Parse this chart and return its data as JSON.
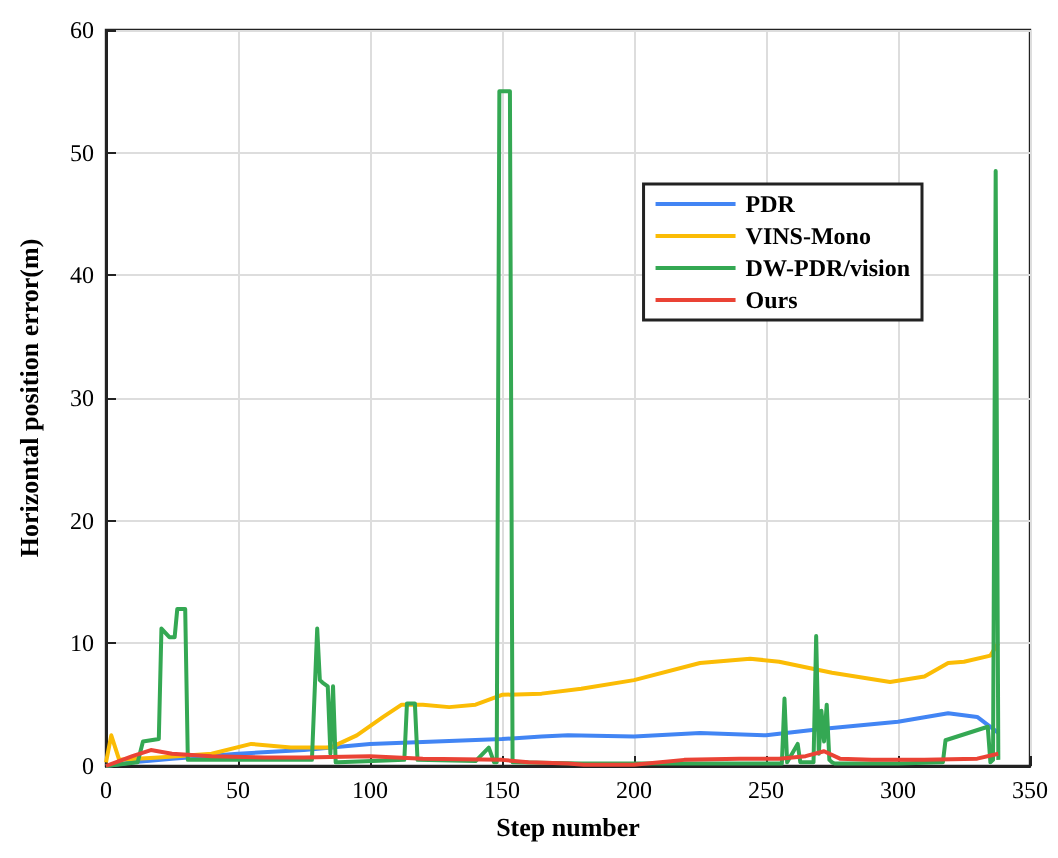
{
  "chart_data": {
    "type": "line",
    "xlabel": "Step number",
    "ylabel": "Horizontal position error(m)",
    "xlim": [
      0,
      350
    ],
    "xticks": [
      0,
      50,
      100,
      150,
      200,
      250,
      300,
      350
    ],
    "ylim": [
      0,
      60
    ],
    "yticks": [
      0,
      10,
      20,
      30,
      40,
      50,
      60
    ],
    "grid": true,
    "legend": "top right",
    "marker": "none",
    "line_style": "solid",
    "series": [
      {
        "name": "PDR",
        "color": "#4285f4",
        "x": [
          0,
          10,
          25,
          50,
          75,
          100,
          125,
          150,
          165,
          175,
          200,
          225,
          250,
          270,
          300,
          319,
          330,
          338
        ],
        "values": [
          0,
          0.3,
          0.6,
          1,
          1.3,
          1.8,
          2,
          2.2,
          2.4,
          2.5,
          2.4,
          2.7,
          2.5,
          3,
          3.6,
          4.3,
          4,
          2.7
        ]
      },
      {
        "name": "VINS-Mono",
        "color": "#fbbc05",
        "x": [
          0,
          2,
          5,
          20,
          40,
          55,
          70,
          85,
          95,
          105,
          112,
          120,
          130,
          140,
          150,
          165,
          180,
          200,
          225,
          244,
          255,
          275,
          297,
          310,
          319,
          325,
          335,
          337,
          338
        ],
        "values": [
          0.3,
          2.5,
          0.5,
          0.7,
          1,
          1.8,
          1.5,
          1.5,
          2.5,
          4,
          5,
          5,
          4.8,
          5,
          5.8,
          5.9,
          6.3,
          7,
          8.4,
          8.75,
          8.5,
          7.6,
          6.85,
          7.3,
          8.4,
          8.5,
          9,
          9.7,
          10
        ]
      },
      {
        "name": "DW-PDR/vision",
        "color": "#34a853",
        "x": [
          0,
          12,
          14,
          20,
          21,
          24,
          26,
          27,
          30,
          30.5,
          31,
          50,
          78,
          80,
          81,
          82,
          84,
          85,
          86,
          87,
          88,
          113,
          114,
          117,
          118,
          140,
          145,
          147,
          148,
          149,
          153,
          154,
          180,
          220,
          256,
          257,
          258,
          262,
          263,
          268,
          269,
          270,
          271,
          272,
          273,
          274,
          275,
          276,
          300,
          317,
          318,
          334,
          335,
          336,
          337,
          338
        ],
        "values": [
          0,
          0.3,
          2,
          2.2,
          11.2,
          10.5,
          10.5,
          12.8,
          12.8,
          12.8,
          0.5,
          0.5,
          0.5,
          11.2,
          7,
          6.8,
          6.5,
          1,
          6.5,
          0.3,
          0.3,
          0.5,
          5.1,
          5.1,
          0.5,
          0.4,
          1.5,
          0.3,
          0.3,
          55,
          55,
          0.3,
          0.2,
          0.2,
          0.2,
          5.5,
          0.3,
          1.8,
          0.3,
          0.3,
          10.6,
          1,
          4.5,
          2,
          5,
          0.5,
          0.3,
          0.2,
          0.2,
          0.3,
          2.1,
          3.2,
          0.3,
          0.5,
          48.5,
          0.5
        ]
      },
      {
        "name": "Ours",
        "color": "#ea4335",
        "x": [
          0,
          10,
          17,
          25,
          40,
          60,
          75,
          100,
          120,
          150,
          160,
          175,
          181,
          200,
          219,
          240,
          255,
          265,
          272,
          278,
          290,
          310,
          330,
          338
        ],
        "values": [
          0,
          0.8,
          1.3,
          1,
          0.8,
          0.7,
          0.7,
          0.8,
          0.6,
          0.5,
          0.3,
          0.2,
          0.1,
          0.1,
          0.5,
          0.6,
          0.6,
          0.8,
          1.2,
          0.6,
          0.5,
          0.5,
          0.6,
          1
        ]
      }
    ]
  }
}
